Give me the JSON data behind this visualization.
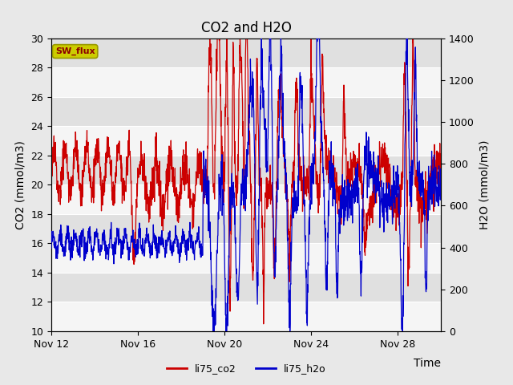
{
  "title": "CO2 and H2O",
  "xlabel": "Time",
  "ylabel_left": "CO2 (mmol/m3)",
  "ylabel_right": "H2O (mmol/m3)",
  "ylim_left": [
    10,
    30
  ],
  "ylim_right": [
    0,
    1400
  ],
  "yticks_left": [
    10,
    12,
    14,
    16,
    18,
    20,
    22,
    24,
    26,
    28,
    30
  ],
  "yticks_right": [
    0,
    200,
    400,
    600,
    800,
    1000,
    1200,
    1400
  ],
  "xtick_labels": [
    "Nov 12",
    "Nov 16",
    "Nov 20",
    "Nov 24",
    "Nov 28"
  ],
  "xtick_positions": [
    0,
    4,
    8,
    12,
    16
  ],
  "total_days": 18,
  "fig_bg_color": "#e8e8e8",
  "plot_bg_color": "#f0f0f0",
  "band_colors": [
    "#f5f5f5",
    "#e0e0e0"
  ],
  "co2_color": "#cc0000",
  "h2o_color": "#0000cc",
  "sw_flux_box_facecolor": "#cccc00",
  "sw_flux_box_edgecolor": "#999900",
  "sw_flux_text_color": "#8b0000",
  "sw_flux_text": "SW_flux",
  "legend_co2": "li75_co2",
  "legend_h2o": "li75_h2o",
  "title_fontsize": 12,
  "axis_label_fontsize": 10,
  "tick_fontsize": 9,
  "linewidth": 0.9
}
